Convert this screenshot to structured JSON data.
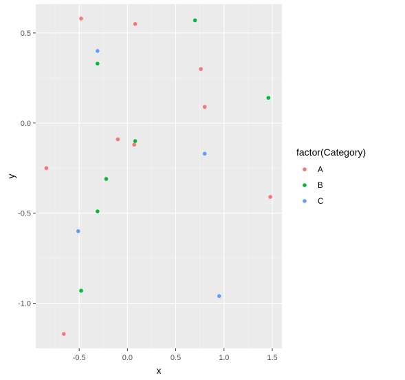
{
  "chart_data": {
    "type": "scatter",
    "title": "",
    "xlabel": "x",
    "ylabel": "y",
    "xlim": [
      -0.95,
      1.6
    ],
    "ylim": [
      -1.25,
      0.66
    ],
    "x_ticks": [
      -0.5,
      0.0,
      0.5,
      1.0,
      1.5
    ],
    "x_tick_labels": [
      "-0.5",
      "0.0",
      "0.5",
      "1.0",
      "1.5"
    ],
    "y_ticks": [
      -1.0,
      -0.5,
      0.0,
      0.5
    ],
    "y_tick_labels": [
      "-1.0",
      "-0.5",
      "0.0",
      "0.5"
    ],
    "grid": true,
    "legend": {
      "title": "factor(Category)",
      "position": "right"
    },
    "series": [
      {
        "name": "A",
        "color": "#F8766D",
        "points": [
          {
            "x": -0.48,
            "y": 0.58
          },
          {
            "x": 0.08,
            "y": 0.55
          },
          {
            "x": 0.76,
            "y": 0.3
          },
          {
            "x": 0.8,
            "y": 0.09
          },
          {
            "x": -0.1,
            "y": -0.09
          },
          {
            "x": 0.07,
            "y": -0.12
          },
          {
            "x": -0.84,
            "y": -0.25
          },
          {
            "x": 1.48,
            "y": -0.41
          },
          {
            "x": -0.66,
            "y": -1.17
          }
        ]
      },
      {
        "name": "B",
        "color": "#00BA38",
        "points": [
          {
            "x": 0.7,
            "y": 0.57
          },
          {
            "x": -0.31,
            "y": 0.33
          },
          {
            "x": 1.46,
            "y": 0.14
          },
          {
            "x": 0.08,
            "y": -0.1
          },
          {
            "x": -0.22,
            "y": -0.31
          },
          {
            "x": -0.31,
            "y": -0.49
          },
          {
            "x": -0.48,
            "y": -0.93
          }
        ]
      },
      {
        "name": "C",
        "color": "#619CFF",
        "points": [
          {
            "x": -0.31,
            "y": 0.4
          },
          {
            "x": 0.8,
            "y": -0.17
          },
          {
            "x": -0.51,
            "y": -0.6
          },
          {
            "x": 0.95,
            "y": -0.96
          }
        ]
      }
    ]
  }
}
